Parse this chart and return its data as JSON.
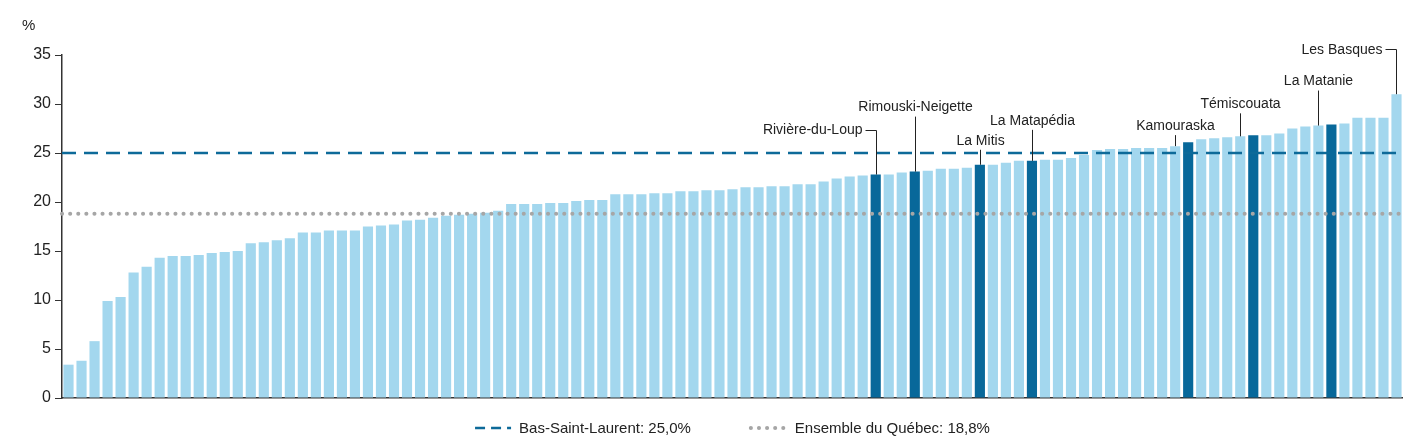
{
  "chart_data": {
    "type": "bar",
    "ylabel": "%",
    "categories": [
      null,
      null,
      null,
      null,
      null,
      null,
      null,
      null,
      null,
      null,
      null,
      null,
      null,
      null,
      null,
      null,
      null,
      null,
      null,
      null,
      null,
      null,
      null,
      null,
      null,
      null,
      null,
      null,
      null,
      null,
      null,
      null,
      null,
      null,
      null,
      null,
      null,
      null,
      null,
      null,
      null,
      null,
      null,
      null,
      null,
      null,
      null,
      null,
      null,
      null,
      null,
      null,
      null,
      null,
      null,
      null,
      null,
      null,
      null,
      null,
      null,
      null,
      null,
      null,
      null,
      null,
      null,
      null,
      null,
      null,
      null,
      null,
      null,
      null,
      null,
      null,
      null,
      null,
      null,
      null,
      null,
      null,
      null,
      null,
      null,
      null,
      null,
      null,
      null,
      null,
      null,
      null,
      null,
      null,
      null,
      null,
      null,
      null,
      null,
      null,
      null,
      null,
      null
    ],
    "values": [
      3.4,
      3.8,
      5.8,
      9.9,
      10.3,
      12.8,
      13.4,
      14.3,
      14.5,
      14.5,
      14.6,
      14.8,
      14.9,
      15.0,
      15.8,
      15.9,
      16.1,
      16.3,
      16.9,
      16.9,
      17.1,
      17.1,
      17.1,
      17.5,
      17.6,
      17.7,
      18.1,
      18.2,
      18.4,
      18.6,
      18.7,
      18.8,
      18.9,
      19.1,
      19.8,
      19.8,
      19.8,
      19.9,
      19.9,
      20.1,
      20.2,
      20.2,
      20.8,
      20.8,
      20.8,
      20.9,
      20.9,
      21.1,
      21.1,
      21.2,
      21.2,
      21.3,
      21.5,
      21.5,
      21.6,
      21.6,
      21.8,
      21.8,
      22.1,
      22.4,
      22.6,
      22.7,
      22.8,
      22.8,
      23.0,
      23.1,
      23.2,
      23.4,
      23.4,
      23.5,
      23.8,
      23.8,
      24.0,
      24.2,
      24.2,
      24.3,
      24.3,
      24.5,
      24.8,
      25.3,
      25.4,
      25.4,
      25.5,
      25.5,
      25.5,
      25.7,
      26.1,
      26.4,
      26.5,
      26.6,
      26.7,
      26.8,
      26.8,
      27.0,
      27.5,
      27.7,
      27.8,
      27.9,
      28.0,
      28.6,
      28.6,
      28.6,
      31.0
    ],
    "colors": [
      "#a3d7ee",
      "#a3d7ee",
      "#a3d7ee",
      "#a3d7ee",
      "#a3d7ee",
      "#a3d7ee",
      "#a3d7ee",
      "#a3d7ee",
      "#a3d7ee",
      "#a3d7ee",
      "#a3d7ee",
      "#a3d7ee",
      "#a3d7ee",
      "#a3d7ee",
      "#a3d7ee",
      "#a3d7ee",
      "#a3d7ee",
      "#a3d7ee",
      "#a3d7ee",
      "#a3d7ee",
      "#a3d7ee",
      "#a3d7ee",
      "#a3d7ee",
      "#a3d7ee",
      "#a3d7ee",
      "#a3d7ee",
      "#a3d7ee",
      "#a3d7ee",
      "#a3d7ee",
      "#a3d7ee",
      "#a3d7ee",
      "#a3d7ee",
      "#a3d7ee",
      "#a3d7ee",
      "#a3d7ee",
      "#a3d7ee",
      "#a3d7ee",
      "#a3d7ee",
      "#a3d7ee",
      "#a3d7ee",
      "#a3d7ee",
      "#a3d7ee",
      "#a3d7ee",
      "#a3d7ee",
      "#a3d7ee",
      "#a3d7ee",
      "#a3d7ee",
      "#a3d7ee",
      "#a3d7ee",
      "#a3d7ee",
      "#a3d7ee",
      "#a3d7ee",
      "#a3d7ee",
      "#a3d7ee",
      "#a3d7ee",
      "#a3d7ee",
      "#a3d7ee",
      "#a3d7ee",
      "#a3d7ee",
      "#a3d7ee",
      "#a3d7ee",
      "#a3d7ee",
      "#08689a",
      "#a3d7ee",
      "#a3d7ee",
      "#08689a",
      "#a3d7ee",
      "#a3d7ee",
      "#a3d7ee",
      "#a3d7ee",
      "#08689a",
      "#a3d7ee",
      "#a3d7ee",
      "#a3d7ee",
      "#08689a",
      "#a3d7ee",
      "#a3d7ee",
      "#a3d7ee",
      "#a3d7ee",
      "#a3d7ee",
      "#a3d7ee",
      "#a3d7ee",
      "#a3d7ee",
      "#a3d7ee",
      "#a3d7ee",
      "#a3d7ee",
      "#08689a",
      "#a3d7ee",
      "#a3d7ee",
      "#a3d7ee",
      "#a3d7ee",
      "#08689a",
      "#a3d7ee",
      "#a3d7ee",
      "#a3d7ee",
      "#a3d7ee",
      "#a3d7ee",
      "#08689a",
      "#a3d7ee",
      "#a3d7ee",
      "#a3d7ee",
      "#a3d7ee",
      "#a3d7ee"
    ],
    "ylim": [
      0,
      35
    ],
    "yticks": [
      0,
      5,
      10,
      15,
      20,
      25,
      30,
      35
    ],
    "tick_labels": "y",
    "legend": "bottom",
    "ref_lines": [
      {
        "axis": "y",
        "value": 25.0,
        "label": "Bas-Saint-Laurent: 25,0%",
        "color": "#0d6a99",
        "line_style": "dashed"
      },
      {
        "axis": "y",
        "value": 18.8,
        "label": "Ensemble du Québec: 18,8%",
        "color": "#a6a6a6",
        "line_style": "dotted"
      }
    ],
    "annotations": [
      "Rivière-du-Loup",
      "Rimouski-Neigette",
      "La Mitis",
      "La Matapédia",
      "Kamouraska",
      "Témiscouata",
      "La Matanie",
      "Les Basques"
    ]
  }
}
